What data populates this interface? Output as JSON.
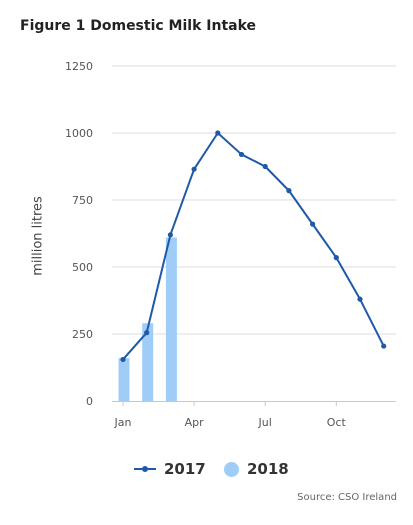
{
  "chart_data": {
    "type": "line+bar",
    "title": "Figure 1 Domestic Milk Intake",
    "ylabel": "million litres",
    "xlabel": "",
    "ylim": [
      0,
      1250
    ],
    "yticks": [
      0,
      250,
      500,
      750,
      1000,
      1250
    ],
    "x_ticks": [
      "Jan",
      "Apr",
      "Jul",
      "Oct"
    ],
    "x_tick_months": [
      1,
      4,
      7,
      10
    ],
    "grid": true,
    "legend_position": "bottom",
    "colors": {
      "line_2017": "#1f5aa6",
      "bars_2018": "#9fcdf7"
    },
    "series": [
      {
        "name": "2017",
        "type": "line",
        "months": [
          1,
          2,
          3,
          4,
          5,
          6,
          7,
          8,
          9,
          10,
          11,
          12
        ],
        "values": [
          155,
          255,
          620,
          865,
          1000,
          920,
          875,
          785,
          660,
          535,
          380,
          205
        ]
      },
      {
        "name": "2018",
        "type": "bar",
        "months": [
          1,
          2,
          3
        ],
        "values": [
          160,
          290,
          610
        ]
      }
    ],
    "source": "Source: CSO Ireland"
  }
}
